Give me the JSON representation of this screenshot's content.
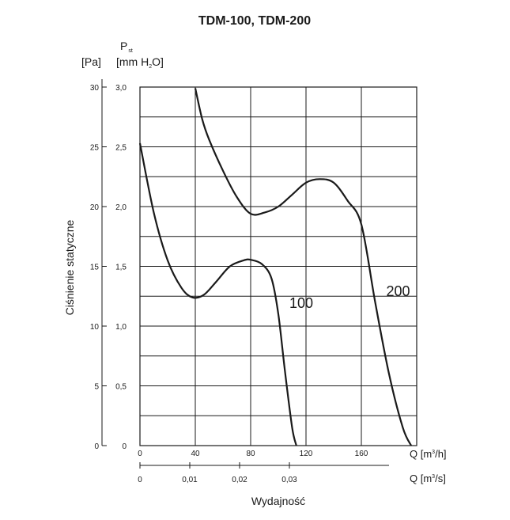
{
  "chart_data": {
    "type": "line",
    "title": "TDM-100, TDM-200",
    "ylabel": "Ciśnienie statyczne",
    "xlabel": "Wydajność",
    "pressure_symbol": "P",
    "pressure_subscript": "st",
    "y_unit_pa": "[Pa]",
    "y_unit_mmh2o_pre": "[mm H",
    "y_unit_mmh2o_sub": "2",
    "y_unit_mmh2o_post": "O]",
    "x_unit_m3h_pre": "Q [m",
    "x_unit_m3h_sup": "3",
    "x_unit_m3h_post": "/h]",
    "x_unit_m3s_pre": "Q [m",
    "x_unit_m3s_sup": "3",
    "x_unit_m3s_post": "/s]",
    "ylim": [
      0,
      30
    ],
    "xlim": [
      0,
      200
    ],
    "y_ticks_pa": [
      "0",
      "5",
      "10",
      "15",
      "20",
      "25",
      "30"
    ],
    "y_ticks_mmh2o": [
      "0",
      "0,5",
      "1,0",
      "1,5",
      "2,0",
      "2,5",
      "3,0"
    ],
    "x_ticks_m3h": [
      "0",
      "40",
      "80",
      "120",
      "160"
    ],
    "x_ticks_m3s": [
      "0",
      "0,01",
      "0,02",
      "0,03"
    ],
    "series": [
      {
        "name": "100",
        "x": [
          0,
          10,
          20,
          30,
          38,
          46,
          55,
          65,
          75,
          80,
          88,
          95,
          100,
          105,
          110,
          113
        ],
        "y": [
          25.3,
          19.5,
          15.5,
          13.2,
          12.4,
          12.6,
          13.7,
          15.0,
          15.5,
          15.55,
          15.2,
          14.0,
          11.0,
          6.0,
          1.5,
          0
        ]
      },
      {
        "name": "200",
        "x": [
          40,
          45,
          50,
          60,
          70,
          80,
          90,
          100,
          110,
          120,
          130,
          140,
          150,
          160,
          170,
          180,
          190,
          196
        ],
        "y": [
          29.9,
          27.3,
          25.6,
          23.0,
          20.8,
          19.4,
          19.5,
          20.0,
          21.0,
          22.0,
          22.3,
          22.0,
          20.5,
          18.5,
          12.0,
          6.0,
          1.5,
          0
        ]
      }
    ]
  }
}
